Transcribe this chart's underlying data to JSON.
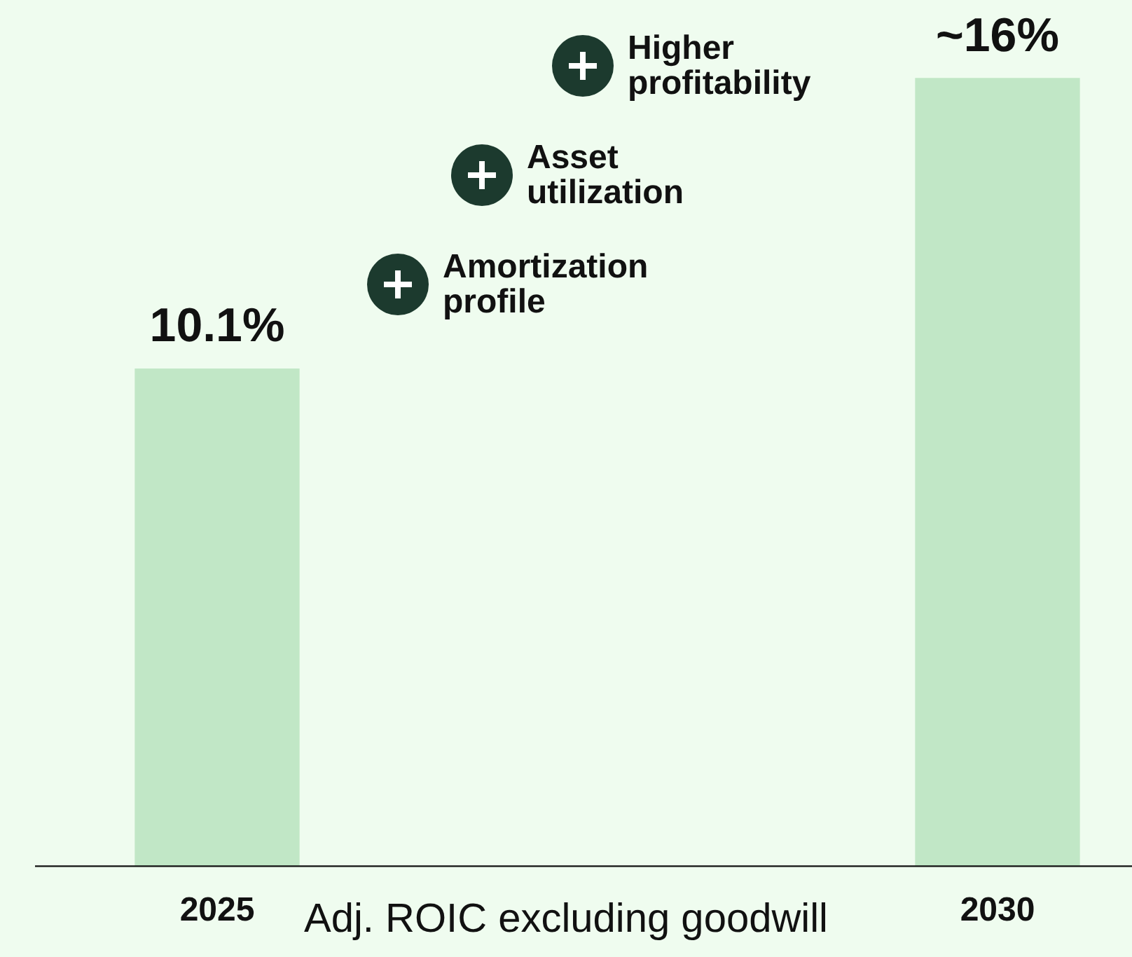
{
  "chart_data": {
    "type": "bar",
    "categories": [
      "2025",
      "2030"
    ],
    "values": [
      10.1,
      16
    ],
    "value_labels": [
      "10.1%",
      "~16%"
    ],
    "color": "#c1e7c6",
    "xlabel": "Adj. ROIC excluding goodwill",
    "annotations": [
      "Higher profitability",
      "Asset utilization",
      "Amortization profile"
    ],
    "grid": false,
    "legend": false,
    "tick_labels": "x"
  }
}
